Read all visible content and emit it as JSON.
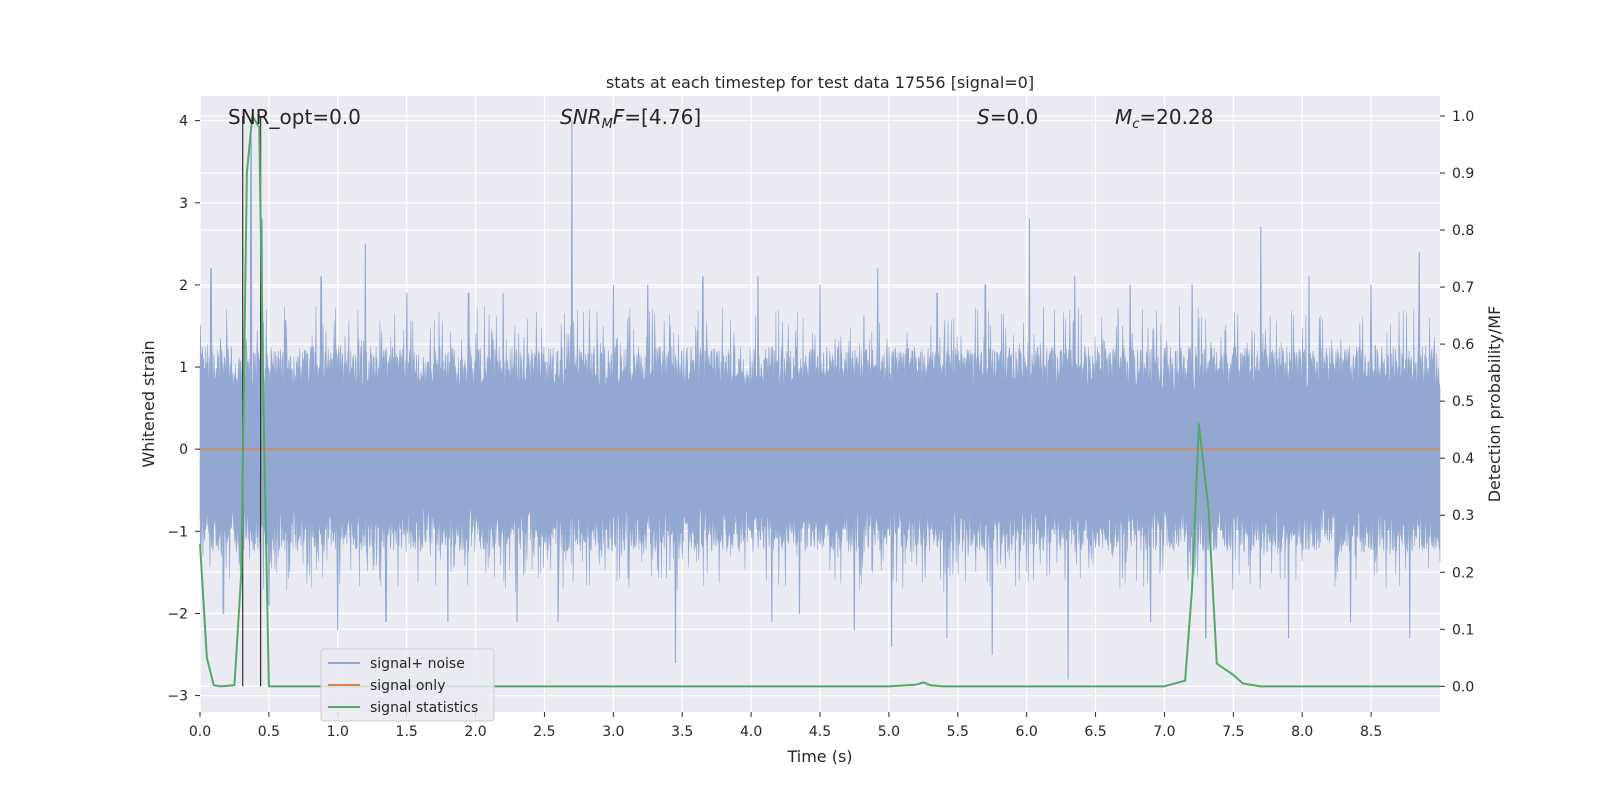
{
  "chart_data": {
    "type": "line",
    "title": "stats at each timestep for test data 17556 [signal=0]",
    "xlabel": "Time (s)",
    "ylabel": "Whitened strain",
    "ylabel_right": "Detection probability/MF",
    "xlim": [
      0,
      9.0
    ],
    "ylim_left": [
      -3.2,
      4.3
    ],
    "ylim_right": [
      -0.045,
      1.035
    ],
    "x_ticks": [
      "0.0",
      "0.5",
      "1.0",
      "1.5",
      "2.0",
      "2.5",
      "3.0",
      "3.5",
      "4.0",
      "4.5",
      "5.0",
      "5.5",
      "6.0",
      "6.5",
      "7.0",
      "7.5",
      "8.0",
      "8.5"
    ],
    "y_ticks_left": [
      "−3",
      "−2",
      "−1",
      "0",
      "1",
      "2",
      "3",
      "4"
    ],
    "y_ticks_right": [
      "0.0",
      "0.1",
      "0.2",
      "0.3",
      "0.4",
      "0.5",
      "0.6",
      "0.7",
      "0.8",
      "0.9",
      "1.0"
    ],
    "grid": true,
    "legend_position": "lower-left",
    "annotations": {
      "snr_opt": "SNR_opt=0.0",
      "snr_mf_math": "SNR",
      "snr_mf_sub": "M",
      "snr_mf_rest": "F",
      "snr_mf_value": "=[4.76]",
      "s_math": "S",
      "s_value": "=0.0",
      "mc_math": "M",
      "mc_sub": "c",
      "mc_value": "=20.28"
    },
    "vertical_lines_x": [
      0.31,
      0.44
    ],
    "series": [
      {
        "name": "signal+ noise",
        "color": "#93a8d0",
        "axis": "left",
        "envelope": {
          "typical_upper": 1.3,
          "typical_lower": -1.3
        },
        "peaks_upper": [
          [
            0.08,
            2.2
          ],
          [
            0.37,
            3.8
          ],
          [
            0.45,
            2.8
          ],
          [
            0.88,
            2.1
          ],
          [
            1.2,
            2.5
          ],
          [
            1.5,
            1.9
          ],
          [
            1.95,
            1.9
          ],
          [
            2.2,
            1.9
          ],
          [
            2.7,
            4.0
          ],
          [
            3.0,
            2.0
          ],
          [
            3.25,
            2.0
          ],
          [
            3.65,
            2.1
          ],
          [
            4.05,
            2.1
          ],
          [
            4.5,
            2.0
          ],
          [
            4.92,
            2.2
          ],
          [
            5.35,
            1.9
          ],
          [
            5.7,
            2.0
          ],
          [
            6.02,
            2.8
          ],
          [
            6.35,
            2.1
          ],
          [
            6.75,
            2.0
          ],
          [
            7.2,
            2.0
          ],
          [
            7.7,
            2.7
          ],
          [
            8.05,
            2.1
          ],
          [
            8.5,
            2.0
          ],
          [
            8.85,
            2.4
          ]
        ],
        "peaks_lower": [
          [
            0.17,
            -2.0
          ],
          [
            0.5,
            -1.9
          ],
          [
            1.0,
            -2.2
          ],
          [
            1.35,
            -2.1
          ],
          [
            1.8,
            -2.1
          ],
          [
            2.3,
            -2.1
          ],
          [
            2.6,
            -2.1
          ],
          [
            3.45,
            -2.6
          ],
          [
            4.15,
            -2.1
          ],
          [
            4.35,
            -2.0
          ],
          [
            4.75,
            -2.2
          ],
          [
            5.02,
            -2.4
          ],
          [
            5.42,
            -2.3
          ],
          [
            5.75,
            -2.5
          ],
          [
            6.3,
            -2.8
          ],
          [
            6.9,
            -2.1
          ],
          [
            7.3,
            -2.3
          ],
          [
            7.9,
            -2.3
          ],
          [
            8.35,
            -2.1
          ],
          [
            8.78,
            -2.3
          ]
        ]
      },
      {
        "name": "signal only",
        "color": "#dd8452",
        "axis": "left",
        "x": [
          0,
          9.0
        ],
        "y": [
          0,
          0
        ]
      },
      {
        "name": "signal statistics",
        "color": "#55a868",
        "axis": "right",
        "x": [
          0,
          0.05,
          0.1,
          0.15,
          0.25,
          0.3,
          0.34,
          0.38,
          0.43,
          0.46,
          0.5,
          0.55,
          1.0,
          2.0,
          3.0,
          4.0,
          5.0,
          5.2,
          5.25,
          5.3,
          5.4,
          5.75,
          6.0,
          6.5,
          7.0,
          7.15,
          7.2,
          7.25,
          7.32,
          7.38,
          7.5,
          7.57,
          7.7,
          8.0,
          8.3,
          9.0
        ],
        "y": [
          0.25,
          0.05,
          0.002,
          0.0,
          0.002,
          0.2,
          0.9,
          1.0,
          0.98,
          0.5,
          0.0,
          0.0,
          0.0,
          0.0,
          0.0,
          0.0,
          0.0,
          0.003,
          0.007,
          0.002,
          0.0,
          0.0,
          0.0,
          0.0,
          0.0,
          0.01,
          0.17,
          0.46,
          0.31,
          0.04,
          0.02,
          0.005,
          0.0,
          0.0,
          0.0,
          0.0
        ]
      }
    ]
  }
}
